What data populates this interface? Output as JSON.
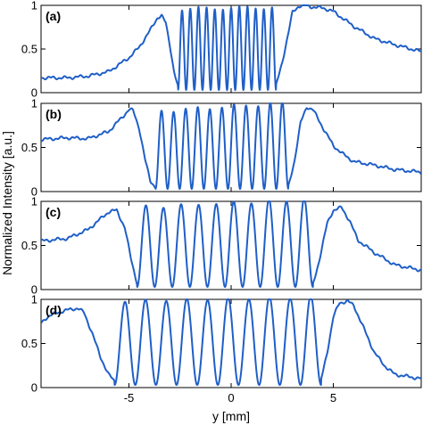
{
  "figure": {
    "ylabel": "Normalized Intensity [a.u.]",
    "xlabel": "y [mm]"
  },
  "chart_data": [
    {
      "type": "line",
      "panel_label": "(a)",
      "xlim": [
        -9.3,
        9.3
      ],
      "ylim": [
        0,
        1
      ],
      "yticks": [
        0,
        0.5,
        1
      ],
      "ytick_labels": [
        "0",
        "0.5",
        "1"
      ],
      "color": "#1f5fc7",
      "fringes": {
        "count": 12,
        "span": [
          -2.6,
          2.2
        ],
        "envelope_peaks": [
          0.93,
          0.95
        ]
      },
      "x": [
        -9.3,
        -8,
        -7,
        -6,
        -5,
        -4.5,
        -4,
        -3.6,
        -3.4,
        -3.2,
        -3.0,
        -2.8,
        -2.6,
        2.2,
        2.5,
        2.8,
        3.0,
        3.3,
        3.6,
        4.0,
        4.5,
        5,
        6,
        7,
        8,
        9.3
      ],
      "y": [
        0.17,
        0.17,
        0.19,
        0.24,
        0.4,
        0.52,
        0.7,
        0.86,
        0.88,
        0.8,
        0.55,
        0.25,
        0.06,
        0.08,
        0.35,
        0.68,
        0.92,
        0.99,
        1.0,
        0.98,
        0.97,
        0.93,
        0.76,
        0.62,
        0.55,
        0.47
      ]
    },
    {
      "type": "line",
      "panel_label": "(b)",
      "xlim": [
        -9.3,
        9.3
      ],
      "ylim": [
        0,
        1
      ],
      "yticks": [
        0,
        0.5,
        1
      ],
      "ytick_labels": [
        "0",
        "0.5",
        "1"
      ],
      "color": "#1f5fc7",
      "fringes": {
        "count": 11,
        "span": [
          -3.7,
          2.8
        ],
        "envelope_peaks": [
          0.88,
          0.98
        ]
      },
      "x": [
        -9.3,
        -8,
        -7,
        -6,
        -5.3,
        -5,
        -4.8,
        -4.5,
        -4.2,
        -3.95,
        -3.7,
        2.8,
        3.1,
        3.4,
        3.7,
        4.0,
        4.5,
        5,
        5.5,
        6,
        7,
        8,
        9.3
      ],
      "y": [
        0.59,
        0.61,
        0.6,
        0.68,
        0.85,
        0.93,
        0.92,
        0.72,
        0.35,
        0.12,
        0.05,
        0.05,
        0.35,
        0.78,
        0.96,
        0.93,
        0.72,
        0.52,
        0.42,
        0.34,
        0.3,
        0.25,
        0.22
      ]
    },
    {
      "type": "line",
      "panel_label": "(c)",
      "xlim": [
        -9.3,
        9.3
      ],
      "ylim": [
        0,
        1
      ],
      "yticks": [
        0,
        0.5,
        1
      ],
      "ytick_labels": [
        "0",
        "0.5",
        "1"
      ],
      "color": "#1f5fc7",
      "fringes": {
        "count": 10,
        "span": [
          -4.6,
          4.0
        ],
        "envelope_peaks": [
          0.9,
          1.0
        ]
      },
      "x": [
        -9.3,
        -8,
        -7,
        -6.5,
        -6,
        -5.6,
        -5.2,
        -4.9,
        -4.6,
        4.0,
        4.3,
        4.7,
        5.0,
        5.4,
        5.8,
        6.2,
        7,
        8,
        9.3
      ],
      "y": [
        0.55,
        0.58,
        0.68,
        0.78,
        0.88,
        0.9,
        0.7,
        0.35,
        0.07,
        0.05,
        0.32,
        0.75,
        0.9,
        0.93,
        0.78,
        0.56,
        0.42,
        0.28,
        0.22
      ]
    },
    {
      "type": "line",
      "panel_label": "(d)",
      "xlim": [
        -9.3,
        9.3
      ],
      "ylim": [
        0,
        1
      ],
      "yticks": [
        0,
        0.5,
        1
      ],
      "ytick_labels": [
        "0",
        "0.5",
        "1"
      ],
      "xticks": [
        -5,
        0,
        5
      ],
      "xtick_labels": [
        "-5",
        "0",
        "5"
      ],
      "color": "#1f5fc7",
      "fringes": {
        "count": 10,
        "span": [
          -5.7,
          4.4
        ],
        "envelope_peaks": [
          0.95,
          1.0
        ]
      },
      "x": [
        -9.3,
        -9.0,
        -8.5,
        -8,
        -7.5,
        -7.2,
        -6.8,
        -6.4,
        -6.0,
        -5.7,
        4.4,
        4.7,
        5.0,
        5.3,
        5.7,
        6.0,
        6.4,
        7,
        7.5,
        8,
        9.3
      ],
      "y": [
        0.73,
        0.8,
        0.85,
        0.88,
        0.9,
        0.85,
        0.62,
        0.35,
        0.15,
        0.07,
        0.08,
        0.4,
        0.8,
        0.96,
        0.98,
        0.93,
        0.72,
        0.4,
        0.25,
        0.15,
        0.1
      ]
    }
  ]
}
